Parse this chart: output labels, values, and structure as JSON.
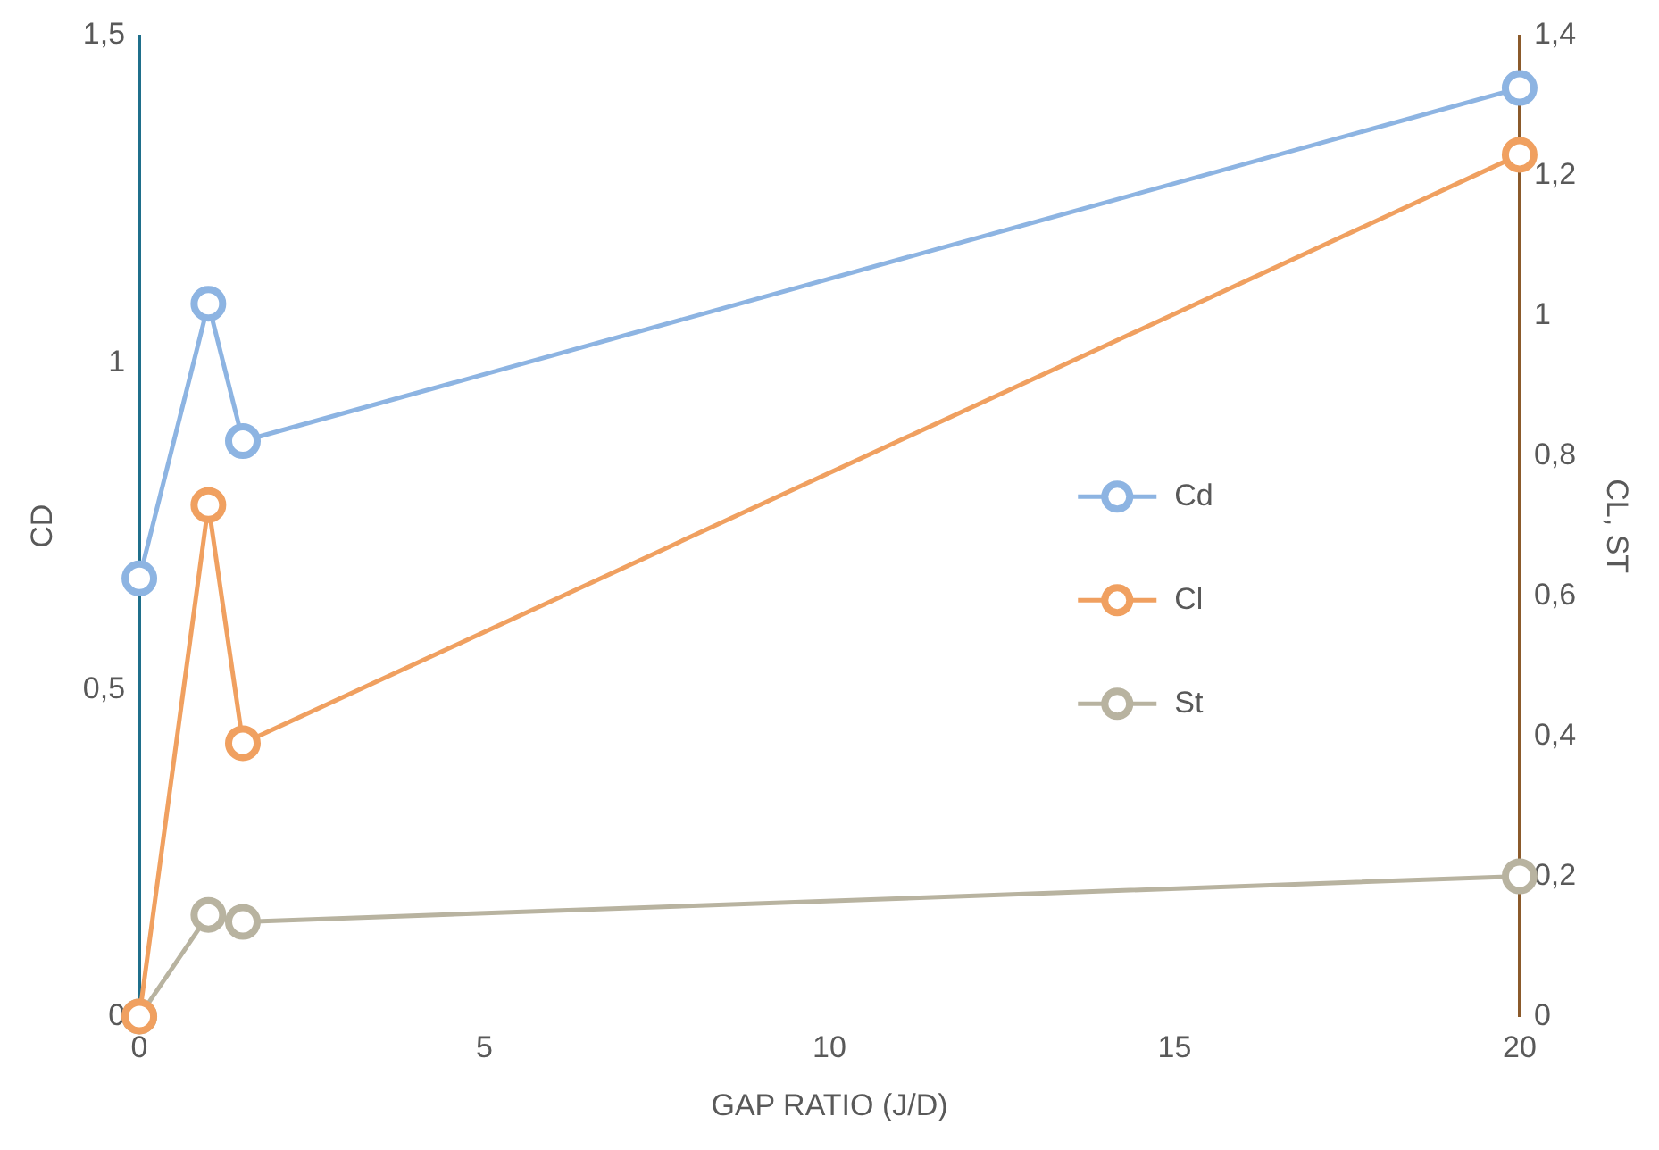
{
  "chart_data": {
    "type": "line",
    "xlabel": "GAP RATIO (J/D)",
    "ylabel": "CD",
    "y2label": "CL, ST",
    "x": [
      0,
      1,
      1.5,
      20
    ],
    "series": [
      {
        "name": "Cd",
        "color": "#8db4e2",
        "values": [
          0.67,
          1.09,
          0.88,
          1.42
        ]
      },
      {
        "name": "Cl",
        "color": "#f0a060",
        "values": [
          0,
          0.73,
          0.39,
          1.23
        ],
        "axis": "y2"
      },
      {
        "name": "St",
        "color": "#b8b3a0",
        "values": [
          0,
          0.145,
          0.135,
          0.2
        ],
        "axis": "y2"
      }
    ],
    "xlim": [
      0,
      20
    ],
    "xticks": [
      0,
      5,
      10,
      15,
      20
    ],
    "ylim": [
      0,
      1.5
    ],
    "yticks": [
      0,
      {
        "value": 0.5,
        "label": "0,5"
      },
      1,
      {
        "value": 1.5,
        "label": "1,5"
      }
    ],
    "y2lim": [
      0,
      1.4
    ],
    "y2ticks": [
      0,
      {
        "value": 0.2,
        "label": "0,2"
      },
      {
        "value": 0.4,
        "label": "0,4"
      },
      {
        "value": 0.6,
        "label": "0,6"
      },
      {
        "value": 0.8,
        "label": "0,8"
      },
      1,
      {
        "value": 1.2,
        "label": "1,2"
      },
      {
        "value": 1.4,
        "label": "1,4"
      }
    ],
    "grid": false,
    "legend": "right",
    "marker": "circle",
    "line_style": "solid"
  }
}
